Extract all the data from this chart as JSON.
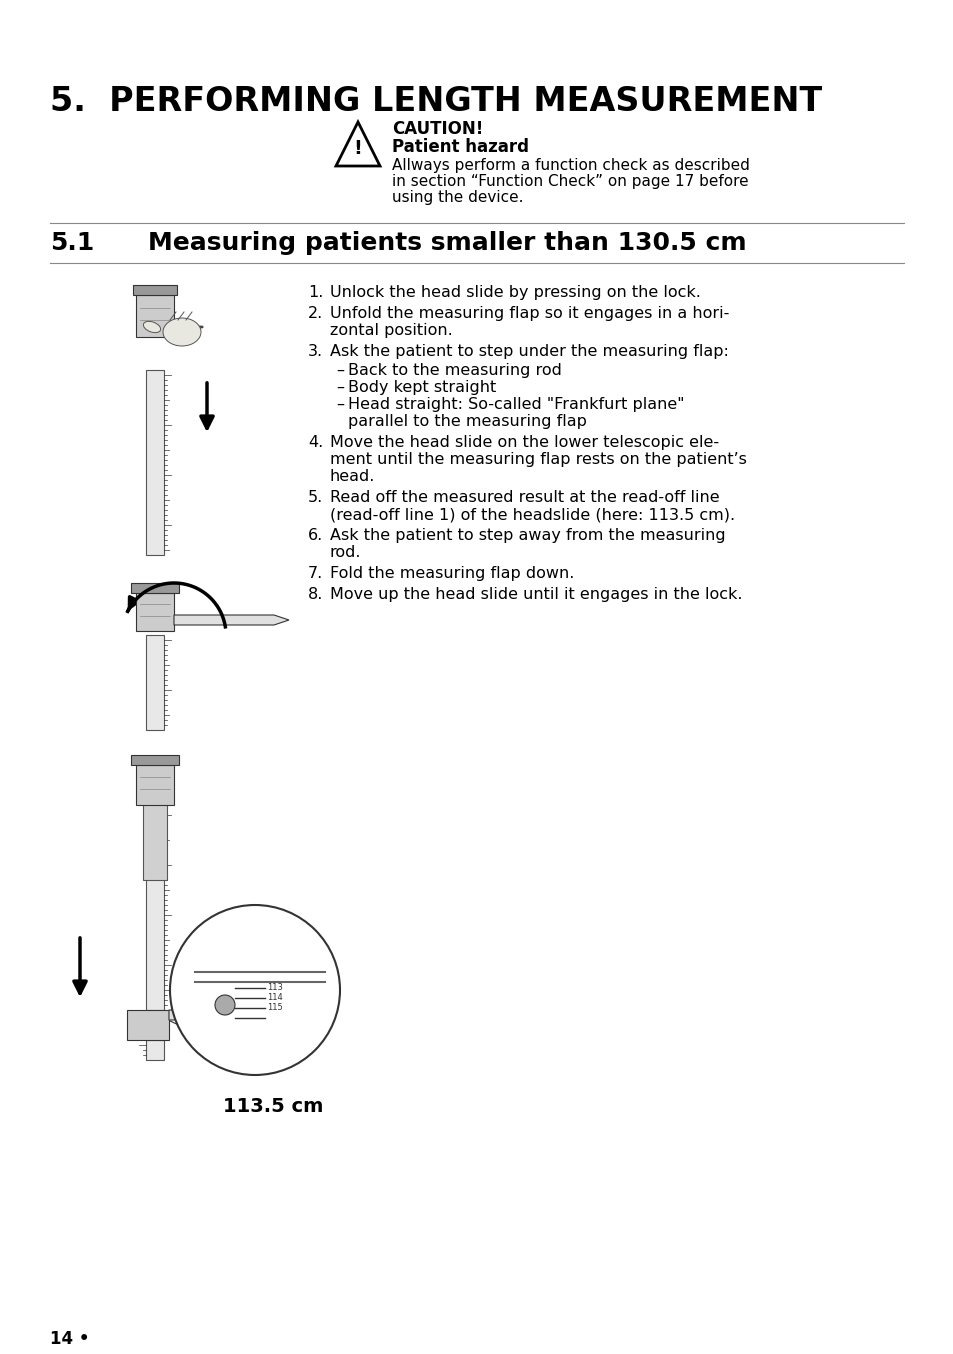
{
  "bg_color": "#ffffff",
  "main_title": "5.  PERFORMING LENGTH MEASUREMENT",
  "section_title_num": "5.1",
  "section_title_text": "Measuring patients smaller than 130.5 cm",
  "caution_label": "CAUTION!",
  "caution_sublabel": "Patient hazard",
  "caution_line1": "Allways perform a function check as described",
  "caution_line2": "in section “Function Check” on page 17 before",
  "caution_line3": "using the device.",
  "inst1": "Unlock the head slide by pressing on the lock.",
  "inst2a": "Unfold the measuring flap so it engages in a hori-",
  "inst2b": "zontal position.",
  "inst3": "Ask the patient to step under the measuring flap:",
  "sub1": "Back to the measuring rod",
  "sub2": "Body kept straight",
  "sub3a": "Head straight: So-called \"Frankfurt plane\"",
  "sub3b": "parallel to the measuring flap",
  "inst4a": "Move the head slide on the lower telescopic ele-",
  "inst4b": "ment until the measuring flap rests on the patient’s",
  "inst4c": "head.",
  "inst5a": "Read off the measured result at the read-off line",
  "inst5b": "(read-off line 1) of the headslide (here: 113.5 cm).",
  "inst6a": "Ask the patient to step away from the measuring",
  "inst6b": "rod.",
  "inst7": "Fold the measuring flap down.",
  "inst8": "Move up the head slide until it engages in the lock.",
  "label_113": "113.5 cm",
  "page_num": "14 •"
}
